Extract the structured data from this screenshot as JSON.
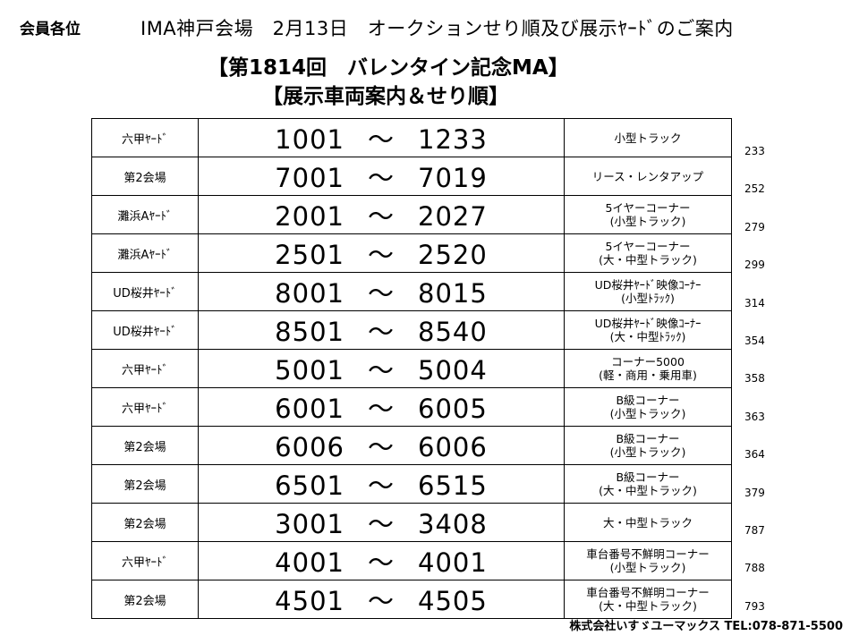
{
  "header": {
    "recipient": "会員各位",
    "title": "IMA神戸会場　2月13日　オークションせり順及び展示ﾔｰﾄﾞのご案内",
    "subtitle1": "【第1814回　バレンタイン記念MA】",
    "subtitle2": "【展示車両案内＆せり順】"
  },
  "schedule": {
    "separator": "～",
    "rows": [
      {
        "yard": "六甲ﾔｰﾄﾞ",
        "start": "1001",
        "end": "1233",
        "category": [
          "小型トラック"
        ],
        "count": "233"
      },
      {
        "yard": "第2会場",
        "start": "7001",
        "end": "7019",
        "category": [
          "リース・レンタアップ"
        ],
        "count": "252"
      },
      {
        "yard": "灘浜Aﾔｰﾄﾞ",
        "start": "2001",
        "end": "2027",
        "category": [
          "5イヤーコーナー",
          "(小型トラック)"
        ],
        "count": "279"
      },
      {
        "yard": "灘浜Aﾔｰﾄﾞ",
        "start": "2501",
        "end": "2520",
        "category": [
          "5イヤーコーナー",
          "(大・中型トラック)"
        ],
        "count": "299"
      },
      {
        "yard": "UD桜井ﾔｰﾄﾞ",
        "start": "8001",
        "end": "8015",
        "category": [
          "UD桜井ﾔｰﾄﾞ映像ｺｰﾅｰ",
          "(小型ﾄﾗｯｸ)"
        ],
        "count": "314"
      },
      {
        "yard": "UD桜井ﾔｰﾄﾞ",
        "start": "8501",
        "end": "8540",
        "category": [
          "UD桜井ﾔｰﾄﾞ映像ｺｰﾅｰ",
          "(大・中型ﾄﾗｯｸ)"
        ],
        "count": "354"
      },
      {
        "yard": "六甲ﾔｰﾄﾞ",
        "start": "5001",
        "end": "5004",
        "category": [
          "コーナー5000",
          "(軽・商用・乗用車)"
        ],
        "count": "358"
      },
      {
        "yard": "六甲ﾔｰﾄﾞ",
        "start": "6001",
        "end": "6005",
        "category": [
          "B級コーナー",
          "(小型トラック)"
        ],
        "count": "363"
      },
      {
        "yard": "第2会場",
        "start": "6006",
        "end": "6006",
        "category": [
          "B級コーナー",
          "(小型トラック)"
        ],
        "count": "364"
      },
      {
        "yard": "第2会場",
        "start": "6501",
        "end": "6515",
        "category": [
          "B級コーナー",
          "(大・中型トラック)"
        ],
        "count": "379"
      },
      {
        "yard": "第2会場",
        "start": "3001",
        "end": "3408",
        "category": [
          "大・中型トラック"
        ],
        "count": "787"
      },
      {
        "yard": "六甲ﾔｰﾄﾞ",
        "start": "4001",
        "end": "4001",
        "category": [
          "車台番号不鮮明コーナー",
          "(小型トラック)"
        ],
        "count": "788"
      },
      {
        "yard": "第2会場",
        "start": "4501",
        "end": "4505",
        "category": [
          "車台番号不鮮明コーナー",
          "(大・中型トラック)"
        ],
        "count": "793"
      }
    ]
  },
  "footer": {
    "company": "株式会社いすゞユーマックス TEL:078-871-5500"
  }
}
